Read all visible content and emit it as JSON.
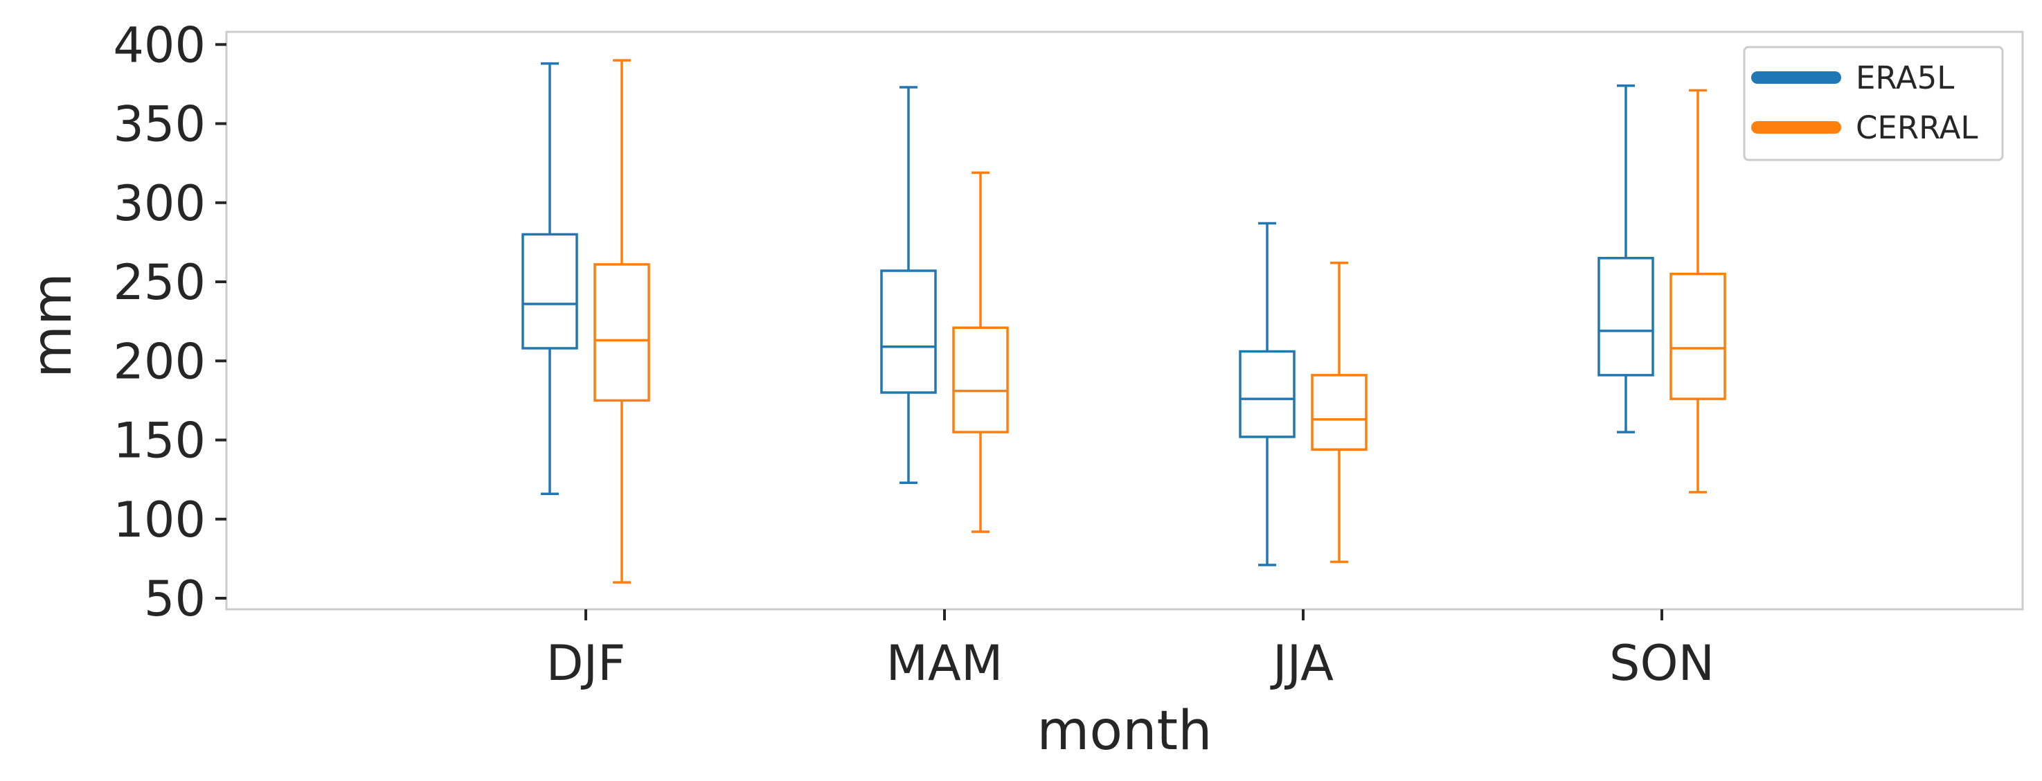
{
  "chart_data": {
    "type": "boxplot",
    "title": "",
    "xlabel": "month",
    "ylabel": "mm",
    "ylim": [
      43,
      408
    ],
    "yticks": [
      50,
      100,
      150,
      200,
      250,
      300,
      350,
      400
    ],
    "categories": [
      "DJF",
      "MAM",
      "JJA",
      "SON"
    ],
    "grid": false,
    "legend_position": "top-right",
    "series": [
      {
        "name": "ERA5L",
        "color": "#1f77b4",
        "boxes": [
          {
            "whislo": 116,
            "q1": 208,
            "med": 236,
            "q3": 280,
            "whishi": 388
          },
          {
            "whislo": 123,
            "q1": 180,
            "med": 209,
            "q3": 257,
            "whishi": 373
          },
          {
            "whislo": 71,
            "q1": 152,
            "med": 176,
            "q3": 206,
            "whishi": 287
          },
          {
            "whislo": 155,
            "q1": 191,
            "med": 219,
            "q3": 265,
            "whishi": 374
          }
        ]
      },
      {
        "name": "CERRAL",
        "color": "#ff7f0e",
        "boxes": [
          {
            "whislo": 60,
            "q1": 175,
            "med": 213,
            "q3": 261,
            "whishi": 390
          },
          {
            "whislo": 92,
            "q1": 155,
            "med": 181,
            "q3": 221,
            "whishi": 319
          },
          {
            "whislo": 73,
            "q1": 144,
            "med": 163,
            "q3": 191,
            "whishi": 262
          },
          {
            "whislo": 117,
            "q1": 176,
            "med": 208,
            "q3": 255,
            "whishi": 371
          }
        ]
      }
    ]
  }
}
